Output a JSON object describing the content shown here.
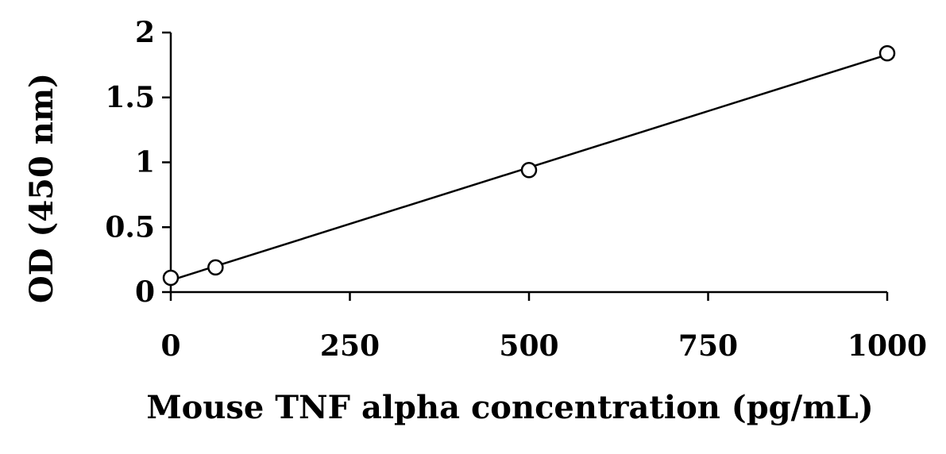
{
  "chart_data": {
    "type": "scatter",
    "xlabel": "Mouse TNF alpha concentration (pg/mL)",
    "ylabel": "OD (450 nm)",
    "xlim": [
      0,
      1000
    ],
    "ylim": [
      0,
      2
    ],
    "x_ticks": [
      0,
      250,
      500,
      750,
      1000
    ],
    "x_tick_labels": [
      "0",
      "250",
      "500",
      "750",
      "1000"
    ],
    "y_ticks": [
      0,
      0.5,
      1,
      1.5,
      2
    ],
    "y_tick_labels": [
      "0",
      "0.5",
      "1",
      "1.5",
      "2"
    ],
    "grid": false,
    "series": [
      {
        "x": [
          0,
          62.5,
          500,
          1000
        ],
        "y": [
          0.11,
          0.19,
          0.94,
          1.84
        ],
        "marker": "open-circle",
        "line": "linear-fit"
      }
    ]
  }
}
